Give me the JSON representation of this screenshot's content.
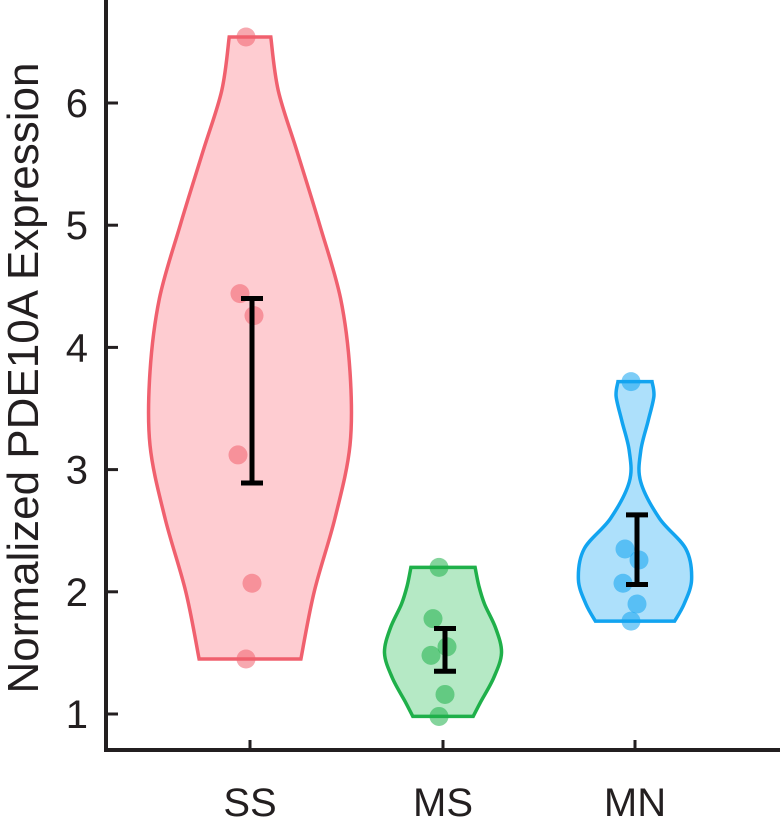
{
  "chart_data": {
    "type": "violin",
    "ylabel": "Normalized PDE10A Expression",
    "xlabel": "",
    "ylim": [
      0.7,
      6.8
    ],
    "yticks": [
      1,
      2,
      3,
      4,
      5,
      6
    ],
    "categories": [
      "SS",
      "MS",
      "MN"
    ],
    "grid": false,
    "groups": [
      {
        "label": "SS",
        "color": "#f0606e",
        "fill": "#fc8f9a",
        "points": [
          6.54,
          4.44,
          4.26,
          3.12,
          2.07,
          1.45
        ],
        "range": [
          1.45,
          6.54
        ],
        "error_low": 2.89,
        "error_high": 4.4,
        "density": [
          [
            1.45,
            0.27
          ],
          [
            2.0,
            0.34
          ],
          [
            2.6,
            0.45
          ],
          [
            3.2,
            0.53
          ],
          [
            3.8,
            0.53
          ],
          [
            4.4,
            0.48
          ],
          [
            5.0,
            0.37
          ],
          [
            5.6,
            0.25
          ],
          [
            6.1,
            0.15
          ],
          [
            6.54,
            0.11
          ]
        ]
      },
      {
        "label": "MS",
        "color": "#1fb04a",
        "fill": "#5ccf7f",
        "points": [
          2.2,
          1.78,
          1.55,
          1.48,
          1.16,
          0.98
        ],
        "range": [
          0.98,
          2.2
        ],
        "error_low": 1.35,
        "error_high": 1.7,
        "density": [
          [
            0.98,
            0.16
          ],
          [
            1.1,
            0.2
          ],
          [
            1.3,
            0.27
          ],
          [
            1.5,
            0.31
          ],
          [
            1.7,
            0.28
          ],
          [
            1.9,
            0.22
          ],
          [
            2.05,
            0.19
          ],
          [
            2.2,
            0.17
          ]
        ]
      },
      {
        "label": "MN",
        "color": "#12a4f0",
        "fill": "#49bbf7",
        "points": [
          3.72,
          2.35,
          2.26,
          2.07,
          1.9,
          1.76
        ],
        "range": [
          1.76,
          3.72
        ],
        "error_low": 2.06,
        "error_high": 2.63,
        "density": [
          [
            1.76,
            0.21
          ],
          [
            1.9,
            0.26
          ],
          [
            2.1,
            0.3
          ],
          [
            2.35,
            0.27
          ],
          [
            2.6,
            0.13
          ],
          [
            2.9,
            0.03
          ],
          [
            3.15,
            0.03
          ],
          [
            3.4,
            0.07
          ],
          [
            3.6,
            0.1
          ],
          [
            3.72,
            0.09
          ]
        ]
      }
    ]
  }
}
